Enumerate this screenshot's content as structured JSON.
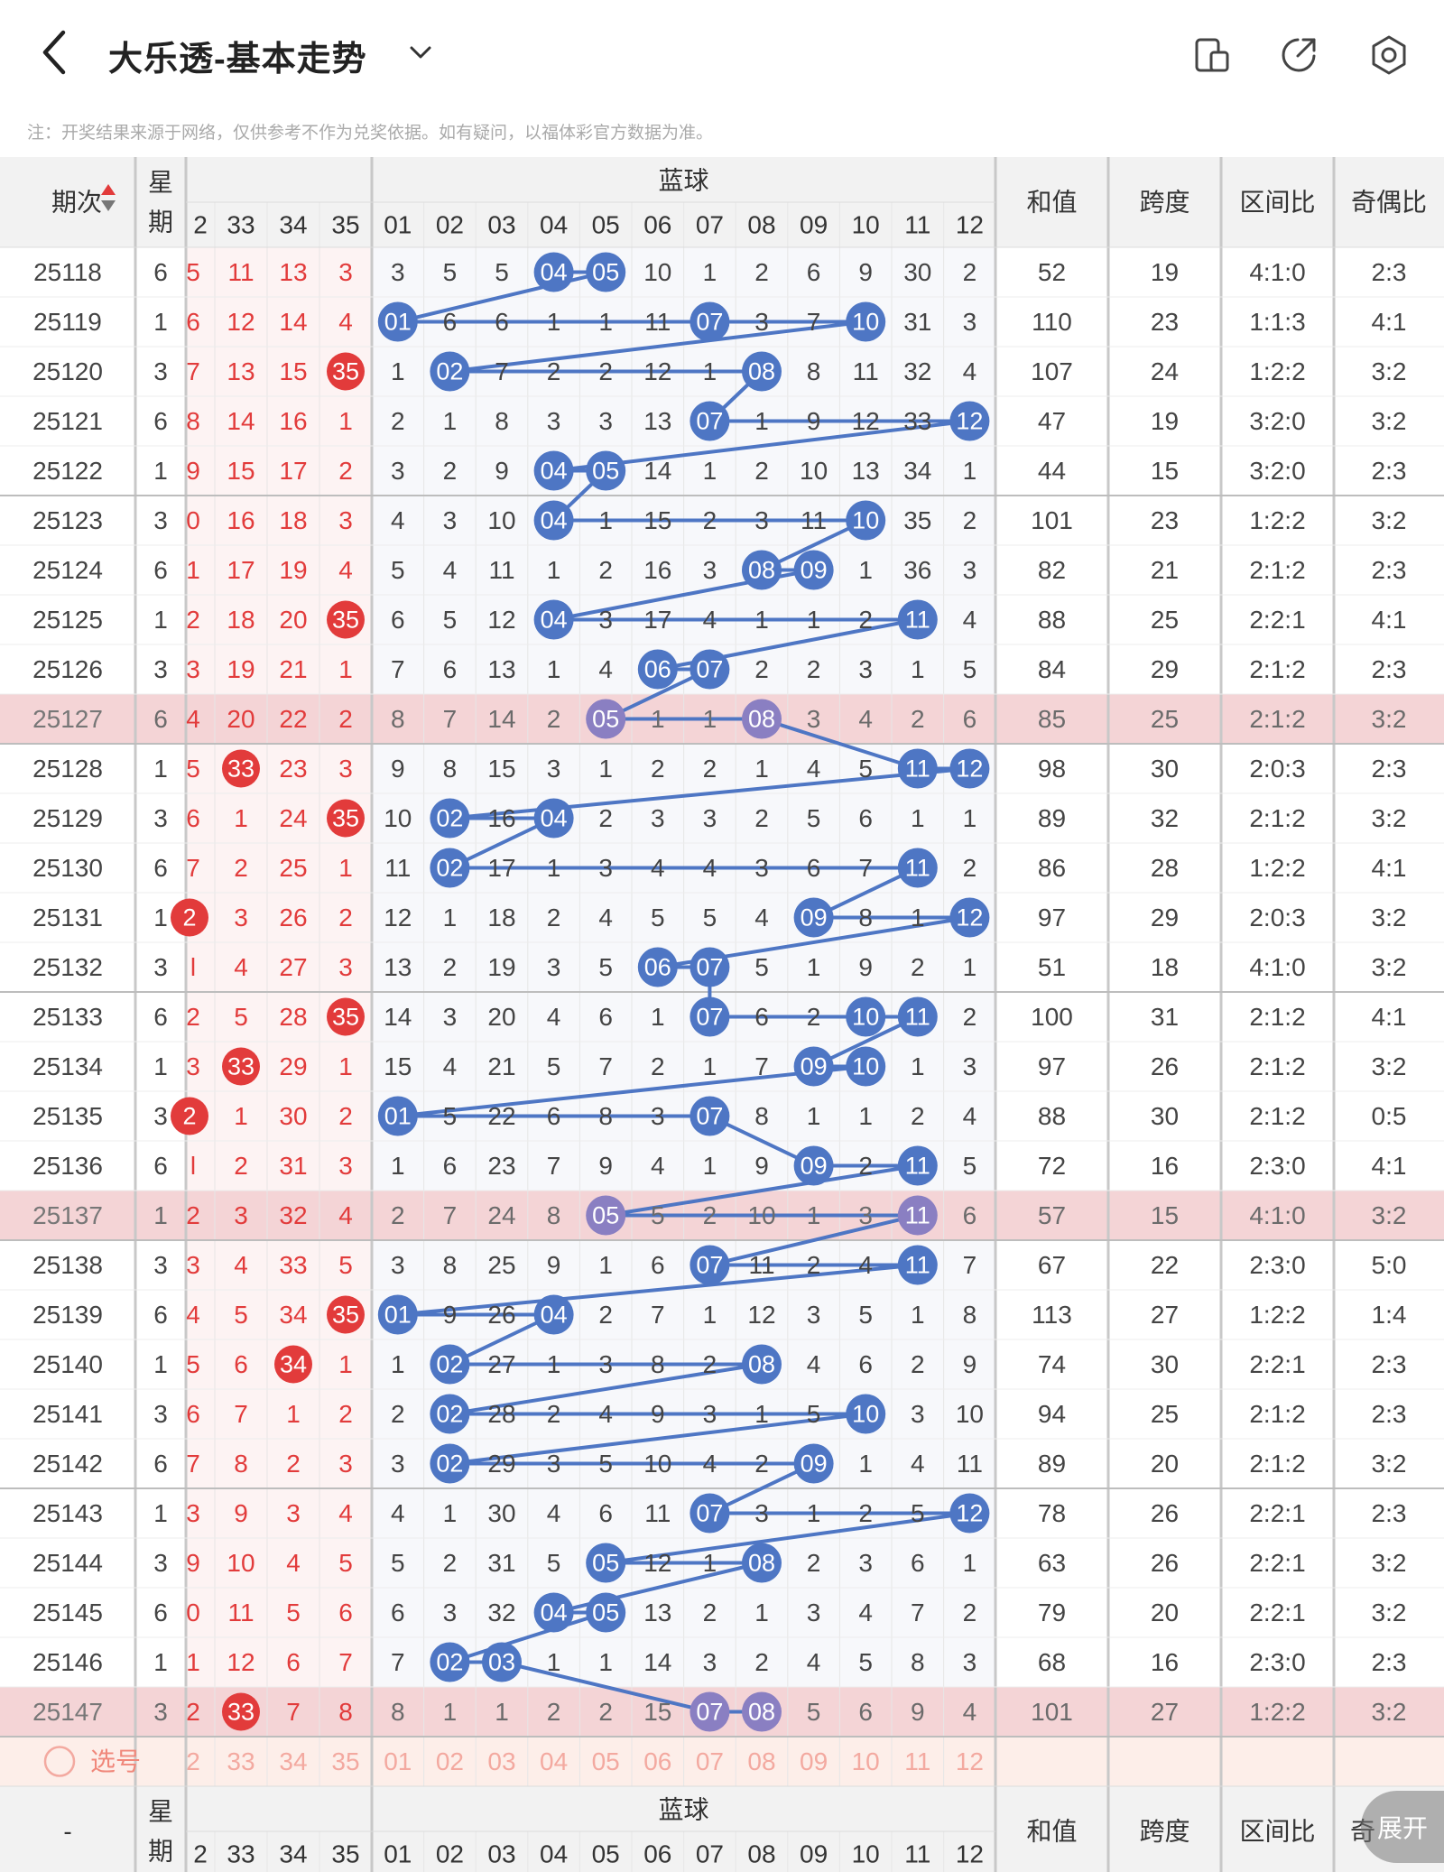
{
  "header": {
    "title": "大乐透-基本走势",
    "notice": "注：开奖结果来源于网络，仅供参考不作为兑奖依据。如有疑问，以福体彩官方数据为准。",
    "icons": [
      "back-chevron-icon",
      "chevron-down-icon",
      "phone-icon",
      "share-icon",
      "settings-icon"
    ]
  },
  "table_header": {
    "period": "期次",
    "week_top": "星",
    "week_bottom": "期",
    "blue_group": "蓝球",
    "sum": "和值",
    "span": "跨度",
    "zone_ratio": "区间比",
    "odd_even": "奇偶比",
    "red_cols": [
      "2",
      "33",
      "34",
      "35"
    ],
    "blue_cols": [
      "01",
      "02",
      "03",
      "04",
      "05",
      "06",
      "07",
      "08",
      "09",
      "10",
      "11",
      "12"
    ]
  },
  "rows": [
    {
      "period": "25118",
      "week": "6",
      "red": [
        "5",
        "11",
        "13",
        "3"
      ],
      "red_hit": [],
      "blue": [
        "3",
        "5",
        "5",
        "04",
        "05",
        "10",
        "1",
        "2",
        "6",
        "9",
        "30",
        "2"
      ],
      "sum": "52",
      "span": "19",
      "zone": "4:1:0",
      "oe": "2:3",
      "hl": false
    },
    {
      "period": "25119",
      "week": "1",
      "red": [
        "6",
        "12",
        "14",
        "4"
      ],
      "red_hit": [],
      "blue": [
        "01",
        "6",
        "6",
        "1",
        "1",
        "11",
        "07",
        "3",
        "7",
        "10",
        "31",
        "3"
      ],
      "sum": "110",
      "span": "23",
      "zone": "1:1:3",
      "oe": "4:1",
      "hl": false
    },
    {
      "period": "25120",
      "week": "3",
      "red": [
        "7",
        "13",
        "15",
        "35"
      ],
      "red_hit": [
        3
      ],
      "blue": [
        "1",
        "02",
        "7",
        "2",
        "2",
        "12",
        "1",
        "08",
        "8",
        "11",
        "32",
        "4"
      ],
      "sum": "107",
      "span": "24",
      "zone": "1:2:2",
      "oe": "3:2",
      "hl": false
    },
    {
      "period": "25121",
      "week": "6",
      "red": [
        "8",
        "14",
        "16",
        "1"
      ],
      "red_hit": [],
      "blue": [
        "2",
        "1",
        "8",
        "3",
        "3",
        "13",
        "07",
        "1",
        "9",
        "12",
        "33",
        "12"
      ],
      "sum": "47",
      "span": "19",
      "zone": "3:2:0",
      "oe": "3:2",
      "hl": false
    },
    {
      "period": "25122",
      "week": "1",
      "red": [
        "9",
        "15",
        "17",
        "2"
      ],
      "red_hit": [],
      "blue": [
        "3",
        "2",
        "9",
        "04",
        "05",
        "14",
        "1",
        "2",
        "10",
        "13",
        "34",
        "1"
      ],
      "sum": "44",
      "span": "15",
      "zone": "3:2:0",
      "oe": "2:3",
      "hl": false
    },
    {
      "period": "25123",
      "week": "3",
      "red": [
        "0",
        "16",
        "18",
        "3"
      ],
      "red_hit": [],
      "blue": [
        "4",
        "3",
        "10",
        "04",
        "1",
        "15",
        "2",
        "3",
        "11",
        "10",
        "35",
        "2"
      ],
      "sum": "101",
      "span": "23",
      "zone": "1:2:2",
      "oe": "3:2",
      "hl": false
    },
    {
      "period": "25124",
      "week": "6",
      "red": [
        "1",
        "17",
        "19",
        "4"
      ],
      "red_hit": [],
      "blue": [
        "5",
        "4",
        "11",
        "1",
        "2",
        "16",
        "3",
        "08",
        "09",
        "1",
        "36",
        "3"
      ],
      "sum": "82",
      "span": "21",
      "zone": "2:1:2",
      "oe": "2:3",
      "hl": false
    },
    {
      "period": "25125",
      "week": "1",
      "red": [
        "2",
        "18",
        "20",
        "35"
      ],
      "red_hit": [
        3
      ],
      "blue": [
        "6",
        "5",
        "12",
        "04",
        "3",
        "17",
        "4",
        "1",
        "1",
        "2",
        "11",
        "4"
      ],
      "sum": "88",
      "span": "25",
      "zone": "2:2:1",
      "oe": "4:1",
      "hl": false
    },
    {
      "period": "25126",
      "week": "3",
      "red": [
        "3",
        "19",
        "21",
        "1"
      ],
      "red_hit": [],
      "blue": [
        "7",
        "6",
        "13",
        "1",
        "4",
        "06",
        "07",
        "2",
        "2",
        "3",
        "1",
        "5"
      ],
      "sum": "84",
      "span": "29",
      "zone": "2:1:2",
      "oe": "2:3",
      "hl": false
    },
    {
      "period": "25127",
      "week": "6",
      "red": [
        "4",
        "20",
        "22",
        "2"
      ],
      "red_hit": [],
      "blue": [
        "8",
        "7",
        "14",
        "2",
        "05",
        "1",
        "1",
        "08",
        "3",
        "4",
        "2",
        "6"
      ],
      "sum": "85",
      "span": "25",
      "zone": "2:1:2",
      "oe": "3:2",
      "hl": true
    },
    {
      "period": "25128",
      "week": "1",
      "red": [
        "5",
        "33",
        "23",
        "3"
      ],
      "red_hit": [
        1
      ],
      "blue": [
        "9",
        "8",
        "15",
        "3",
        "1",
        "2",
        "2",
        "1",
        "4",
        "5",
        "11",
        "12"
      ],
      "sum": "98",
      "span": "30",
      "zone": "2:0:3",
      "oe": "2:3",
      "hl": false
    },
    {
      "period": "25129",
      "week": "3",
      "red": [
        "6",
        "1",
        "24",
        "35"
      ],
      "red_hit": [
        3
      ],
      "blue": [
        "10",
        "02",
        "16",
        "04",
        "2",
        "3",
        "3",
        "2",
        "5",
        "6",
        "1",
        "1"
      ],
      "sum": "89",
      "span": "32",
      "zone": "2:1:2",
      "oe": "3:2",
      "hl": false
    },
    {
      "period": "25130",
      "week": "6",
      "red": [
        "7",
        "2",
        "25",
        "1"
      ],
      "red_hit": [],
      "blue": [
        "11",
        "02",
        "17",
        "1",
        "3",
        "4",
        "4",
        "3",
        "6",
        "7",
        "11",
        "2"
      ],
      "sum": "86",
      "span": "28",
      "zone": "1:2:2",
      "oe": "4:1",
      "hl": false
    },
    {
      "period": "25131",
      "week": "1",
      "red": [
        "2",
        "3",
        "26",
        "2"
      ],
      "red_hit": [
        0
      ],
      "blue": [
        "12",
        "1",
        "18",
        "2",
        "4",
        "5",
        "5",
        "4",
        "09",
        "8",
        "1",
        "12"
      ],
      "sum": "97",
      "span": "29",
      "zone": "2:0:3",
      "oe": "3:2",
      "hl": false
    },
    {
      "period": "25132",
      "week": "3",
      "red": [
        "l",
        "4",
        "27",
        "3"
      ],
      "red_hit": [],
      "blue": [
        "13",
        "2",
        "19",
        "3",
        "5",
        "06",
        "07",
        "5",
        "1",
        "9",
        "2",
        "1"
      ],
      "sum": "51",
      "span": "18",
      "zone": "4:1:0",
      "oe": "3:2",
      "hl": false
    },
    {
      "period": "25133",
      "week": "6",
      "red": [
        "2",
        "5",
        "28",
        "35"
      ],
      "red_hit": [
        3
      ],
      "blue": [
        "14",
        "3",
        "20",
        "4",
        "6",
        "1",
        "07",
        "6",
        "2",
        "10",
        "11",
        "2"
      ],
      "sum": "100",
      "span": "31",
      "zone": "2:1:2",
      "oe": "4:1",
      "hl": false
    },
    {
      "period": "25134",
      "week": "1",
      "red": [
        "3",
        "33",
        "29",
        "1"
      ],
      "red_hit": [
        1
      ],
      "blue": [
        "15",
        "4",
        "21",
        "5",
        "7",
        "2",
        "1",
        "7",
        "09",
        "10",
        "1",
        "3"
      ],
      "sum": "97",
      "span": "26",
      "zone": "2:1:2",
      "oe": "3:2",
      "hl": false
    },
    {
      "period": "25135",
      "week": "3",
      "red": [
        "2",
        "1",
        "30",
        "2"
      ],
      "red_hit": [
        0
      ],
      "blue": [
        "01",
        "5",
        "22",
        "6",
        "8",
        "3",
        "07",
        "8",
        "1",
        "1",
        "2",
        "4"
      ],
      "sum": "88",
      "span": "30",
      "zone": "2:1:2",
      "oe": "0:5",
      "hl": false
    },
    {
      "period": "25136",
      "week": "6",
      "red": [
        "l",
        "2",
        "31",
        "3"
      ],
      "red_hit": [],
      "blue": [
        "1",
        "6",
        "23",
        "7",
        "9",
        "4",
        "1",
        "9",
        "09",
        "2",
        "11",
        "5"
      ],
      "sum": "72",
      "span": "16",
      "zone": "2:3:0",
      "oe": "4:1",
      "hl": false
    },
    {
      "period": "25137",
      "week": "1",
      "red": [
        "2",
        "3",
        "32",
        "4"
      ],
      "red_hit": [],
      "blue": [
        "2",
        "7",
        "24",
        "8",
        "05",
        "5",
        "2",
        "10",
        "1",
        "3",
        "11",
        "6"
      ],
      "sum": "57",
      "span": "15",
      "zone": "4:1:0",
      "oe": "3:2",
      "hl": true
    },
    {
      "period": "25138",
      "week": "3",
      "red": [
        "3",
        "4",
        "33",
        "5"
      ],
      "red_hit": [],
      "blue": [
        "3",
        "8",
        "25",
        "9",
        "1",
        "6",
        "07",
        "11",
        "2",
        "4",
        "11",
        "7"
      ],
      "sum": "67",
      "span": "22",
      "zone": "2:3:0",
      "oe": "5:0",
      "hl": false
    },
    {
      "period": "25139",
      "week": "6",
      "red": [
        "4",
        "5",
        "34",
        "35"
      ],
      "red_hit": [
        3
      ],
      "blue": [
        "01",
        "9",
        "26",
        "04",
        "2",
        "7",
        "1",
        "12",
        "3",
        "5",
        "1",
        "8"
      ],
      "sum": "113",
      "span": "27",
      "zone": "1:2:2",
      "oe": "1:4",
      "hl": false
    },
    {
      "period": "25140",
      "week": "1",
      "red": [
        "5",
        "6",
        "34",
        "1"
      ],
      "red_hit": [
        2
      ],
      "blue": [
        "1",
        "02",
        "27",
        "1",
        "3",
        "8",
        "2",
        "08",
        "4",
        "6",
        "2",
        "9"
      ],
      "sum": "74",
      "span": "30",
      "zone": "2:2:1",
      "oe": "2:3",
      "hl": false
    },
    {
      "period": "25141",
      "week": "3",
      "red": [
        "6",
        "7",
        "1",
        "2"
      ],
      "red_hit": [],
      "blue": [
        "2",
        "02",
        "28",
        "2",
        "4",
        "9",
        "3",
        "1",
        "5",
        "10",
        "3",
        "10"
      ],
      "sum": "94",
      "span": "25",
      "zone": "2:1:2",
      "oe": "2:3",
      "hl": false
    },
    {
      "period": "25142",
      "week": "6",
      "red": [
        "7",
        "8",
        "2",
        "3"
      ],
      "red_hit": [],
      "blue": [
        "3",
        "02",
        "29",
        "3",
        "5",
        "10",
        "4",
        "2",
        "09",
        "1",
        "4",
        "11"
      ],
      "sum": "89",
      "span": "20",
      "zone": "2:1:2",
      "oe": "3:2",
      "hl": false
    },
    {
      "period": "25143",
      "week": "1",
      "red": [
        "3",
        "9",
        "3",
        "4"
      ],
      "red_hit": [],
      "blue": [
        "4",
        "1",
        "30",
        "4",
        "6",
        "11",
        "07",
        "3",
        "1",
        "2",
        "5",
        "12"
      ],
      "sum": "78",
      "span": "26",
      "zone": "2:2:1",
      "oe": "2:3",
      "hl": false
    },
    {
      "period": "25144",
      "week": "3",
      "red": [
        "9",
        "10",
        "4",
        "5"
      ],
      "red_hit": [],
      "blue": [
        "5",
        "2",
        "31",
        "5",
        "05",
        "12",
        "1",
        "08",
        "2",
        "3",
        "6",
        "1"
      ],
      "sum": "63",
      "span": "26",
      "zone": "2:2:1",
      "oe": "3:2",
      "hl": false
    },
    {
      "period": "25145",
      "week": "6",
      "red": [
        "0",
        "11",
        "5",
        "6"
      ],
      "red_hit": [],
      "blue": [
        "6",
        "3",
        "32",
        "04",
        "05",
        "13",
        "2",
        "1",
        "3",
        "4",
        "7",
        "2"
      ],
      "sum": "79",
      "span": "20",
      "zone": "2:2:1",
      "oe": "3:2",
      "hl": false
    },
    {
      "period": "25146",
      "week": "1",
      "red": [
        "1",
        "12",
        "6",
        "7"
      ],
      "red_hit": [],
      "blue": [
        "7",
        "02",
        "03",
        "1",
        "1",
        "14",
        "3",
        "2",
        "4",
        "5",
        "8",
        "3"
      ],
      "sum": "68",
      "span": "16",
      "zone": "2:3:0",
      "oe": "2:3",
      "hl": false
    },
    {
      "period": "25147",
      "week": "3",
      "red": [
        "2",
        "33",
        "7",
        "8"
      ],
      "red_hit": [
        1
      ],
      "blue": [
        "8",
        "1",
        "1",
        "2",
        "2",
        "15",
        "07",
        "08",
        "5",
        "6",
        "9",
        "4"
      ],
      "sum": "101",
      "span": "27",
      "zone": "1:2:2",
      "oe": "3:2",
      "hl": true
    }
  ],
  "select_row": {
    "label": "选号",
    "red_cols": [
      "2",
      "33",
      "34",
      "35"
    ],
    "blue_cols": [
      "01",
      "02",
      "03",
      "04",
      "05",
      "06",
      "07",
      "08",
      "09",
      "10",
      "11",
      "12"
    ]
  },
  "footer_header": {
    "period": "-",
    "week_top": "星",
    "week_bottom": "期",
    "blue_group": "蓝球",
    "sum": "和值",
    "span": "跨度",
    "zone_ratio": "区间比",
    "odd_even": "奇"
  },
  "expand_button": "展开",
  "colors": {
    "red": "#e23b3b",
    "blue_ball": "#4e76c4",
    "purple_ball": "#8a7fc2",
    "highlight_row": "#f4d4d6",
    "header_bg": "#f2f2f2",
    "select_row_bg": "#fdeee9"
  }
}
